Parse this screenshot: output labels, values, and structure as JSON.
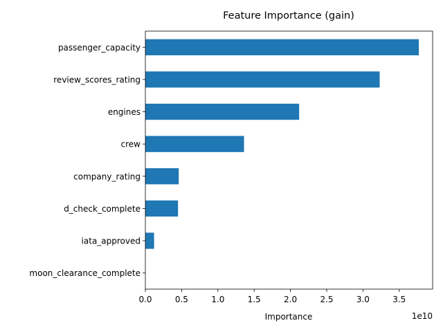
{
  "chart_data": {
    "type": "bar",
    "orientation": "horizontal",
    "title": "Feature Importance (gain)",
    "xlabel": "Importance",
    "ylabel": "",
    "x_offset_label": "1e10",
    "xlim": [
      0,
      3.96
    ],
    "x_ticks": [
      0.0,
      0.5,
      1.0,
      1.5,
      2.0,
      2.5,
      3.0,
      3.5
    ],
    "x_tick_labels": [
      "0.0",
      "0.5",
      "1.0",
      "1.5",
      "2.0",
      "2.5",
      "3.0",
      "3.5"
    ],
    "categories": [
      "passenger_capacity",
      "review_scores_rating",
      "engines",
      "crew",
      "company_rating",
      "d_check_complete",
      "iata_approved",
      "moon_clearance_complete"
    ],
    "values": [
      3.77,
      3.23,
      2.12,
      1.36,
      0.46,
      0.45,
      0.12,
      0.0
    ],
    "value_scale": "1e10",
    "bar_color": "#1f77b4",
    "grid": false,
    "legend": "none"
  }
}
